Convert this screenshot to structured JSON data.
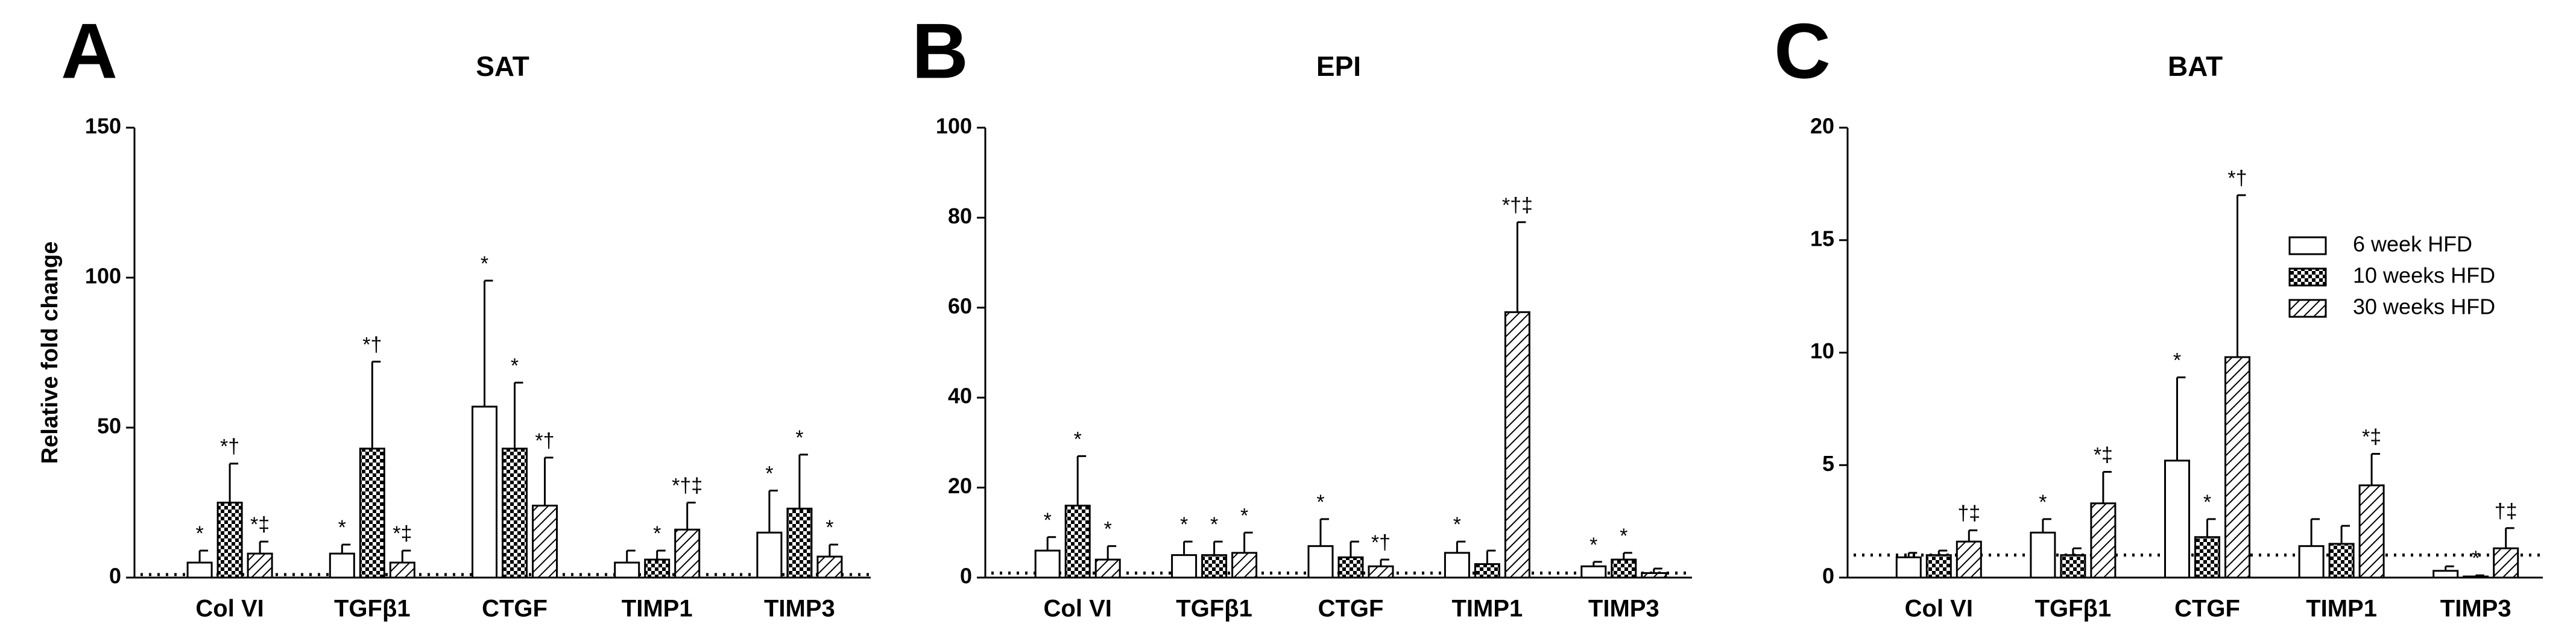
{
  "chart_data": [
    {
      "type": "bar",
      "panel": "A",
      "title": "SAT",
      "ylabel": "Relative fold change",
      "categories": [
        "Col VI",
        "TGFβ1",
        "CTGF",
        "TIMP1",
        "TIMP3"
      ],
      "ylim": [
        0,
        150
      ],
      "yticks": [
        0,
        50,
        100,
        150
      ],
      "reference_line": 1,
      "series": [
        {
          "name": "6 week HFD",
          "color": "#000000",
          "pattern": "none",
          "values": [
            5,
            8,
            57,
            5,
            15
          ],
          "errors": [
            4,
            3,
            42,
            4,
            14
          ],
          "annotations": [
            "*",
            "*",
            "*",
            null,
            "*"
          ]
        },
        {
          "name": "10 weeks HFD",
          "color": "#000000",
          "pattern": "checker",
          "values": [
            25,
            43,
            43,
            6,
            23
          ],
          "errors": [
            13,
            29,
            22,
            3,
            18
          ],
          "annotations": [
            "*†",
            "*†",
            "*",
            "*",
            "*"
          ]
        },
        {
          "name": "30 weeks HFD",
          "color": "#000000",
          "pattern": "hatch",
          "values": [
            8,
            5,
            24,
            16,
            7
          ],
          "errors": [
            4,
            4,
            16,
            9,
            4
          ],
          "annotations": [
            "*‡",
            "*‡",
            "*†",
            "*†‡",
            "*"
          ]
        }
      ]
    },
    {
      "type": "bar",
      "panel": "B",
      "title": "EPI",
      "categories": [
        "Col VI",
        "TGFβ1",
        "CTGF",
        "TIMP1",
        "TIMP3"
      ],
      "ylim": [
        0,
        100
      ],
      "yticks": [
        0,
        20,
        40,
        60,
        80,
        100
      ],
      "reference_line": 1,
      "series": [
        {
          "name": "6 week HFD",
          "color": "#000000",
          "pattern": "none",
          "values": [
            6,
            5,
            7,
            5.5,
            2.5
          ],
          "errors": [
            3,
            3,
            6,
            2.5,
            1
          ],
          "annotations": [
            "*",
            "*",
            "*",
            "*",
            "*"
          ]
        },
        {
          "name": "10 weeks HFD",
          "color": "#000000",
          "pattern": "checker",
          "values": [
            16,
            5,
            4.5,
            3,
            4
          ],
          "errors": [
            11,
            3,
            3.5,
            3,
            1.5
          ],
          "annotations": [
            "*",
            "*",
            null,
            null,
            "*"
          ]
        },
        {
          "name": "30 weeks HFD",
          "color": "#000000",
          "pattern": "hatch",
          "values": [
            4,
            5.5,
            2.5,
            59,
            1
          ],
          "errors": [
            3,
            4.5,
            1.5,
            20,
            1
          ],
          "annotations": [
            "*",
            "*",
            "*†",
            "*†‡",
            null
          ]
        }
      ]
    },
    {
      "type": "bar",
      "panel": "C",
      "title": "BAT",
      "categories": [
        "Col VI",
        "TGFβ1",
        "CTGF",
        "TIMP1",
        "TIMP3"
      ],
      "ylim": [
        0,
        20
      ],
      "yticks": [
        0,
        5,
        10,
        15,
        20
      ],
      "reference_line": 1,
      "legend": "upper right",
      "series": [
        {
          "name": "6 week HFD",
          "color": "#000000",
          "pattern": "none",
          "values": [
            0.9,
            2,
            5.2,
            1.4,
            0.3
          ],
          "errors": [
            0.2,
            0.6,
            3.7,
            1.2,
            0.2
          ],
          "annotations": [
            null,
            "*",
            "*",
            null,
            null
          ]
        },
        {
          "name": "10 weeks HFD",
          "color": "#000000",
          "pattern": "checker",
          "values": [
            1,
            1,
            1.8,
            1.5,
            0.05
          ],
          "errors": [
            0.2,
            0.3,
            0.8,
            0.8,
            0.05
          ],
          "annotations": [
            null,
            null,
            "*",
            null,
            "*"
          ]
        },
        {
          "name": "30 weeks HFD",
          "color": "#000000",
          "pattern": "hatch",
          "values": [
            1.6,
            3.3,
            9.8,
            4.1,
            1.3
          ],
          "errors": [
            0.5,
            1.4,
            7.2,
            1.4,
            0.9
          ],
          "annotations": [
            "†‡",
            "*‡",
            "*†",
            "*‡",
            "†‡"
          ]
        }
      ]
    }
  ]
}
